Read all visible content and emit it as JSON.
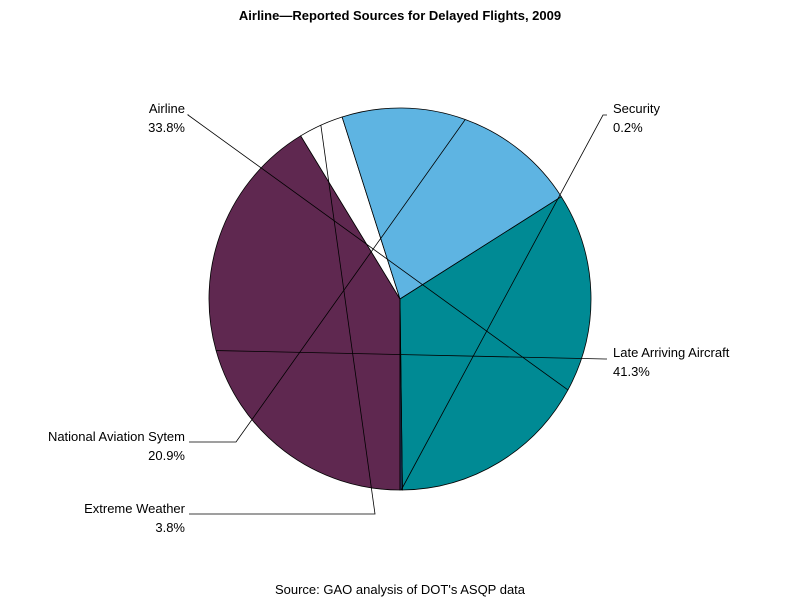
{
  "chart_data": {
    "type": "pie",
    "title": "Airline—Reported Sources for Delayed Flights, 2009",
    "footnote": "Source: GAO analysis of DOT's ASQP data",
    "slices": [
      {
        "label": "Late Arriving Aircraft",
        "value": 41.3,
        "display": "41.3%",
        "color": "#5f2850"
      },
      {
        "label": "Extreme Weather",
        "value": 3.8,
        "display": "3.8%",
        "color": "#ffffff"
      },
      {
        "label": "National Aviation Sytem",
        "value": 20.9,
        "display": "20.9%",
        "color": "#5eb4e2"
      },
      {
        "label": "Airline",
        "value": 33.8,
        "display": "33.8%",
        "color": "#008a94"
      },
      {
        "label": "Security",
        "value": 0.2,
        "display": "0.2%",
        "color": "#1a3358"
      }
    ]
  }
}
